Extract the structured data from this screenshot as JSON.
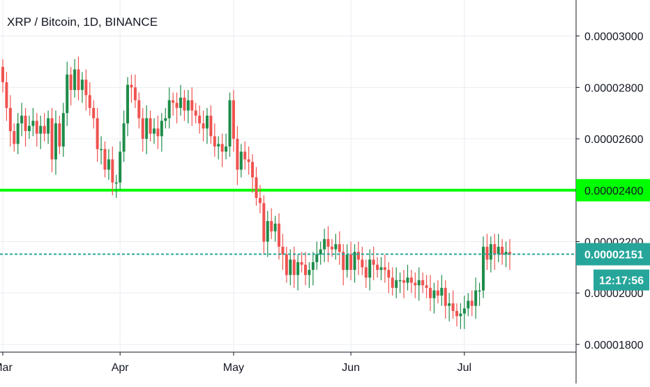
{
  "chart_data": {
    "type": "candlestick",
    "title": "XRP / Bitcoin, 1D, BINANCE",
    "x_axis": {
      "labels": [
        {
          "label": "Mar",
          "day": 0
        },
        {
          "label": "Apr",
          "day": 31
        },
        {
          "label": "May",
          "day": 61
        },
        {
          "label": "Jun",
          "day": 92
        },
        {
          "label": "Jul",
          "day": 122
        }
      ]
    },
    "y_axis": {
      "range": [
        1.77e-05,
        3.14e-05
      ],
      "ticks": [
        {
          "value": 3e-05,
          "label": "0.00003000"
        },
        {
          "value": 2.8e-05,
          "label": "0.00002800"
        },
        {
          "value": 2.6e-05,
          "label": "0.00002600"
        },
        {
          "value": 2.4e-05,
          "label": "0.00002400"
        },
        {
          "value": 2.2e-05,
          "label": "0.00002200"
        },
        {
          "value": 2e-05,
          "label": "0.00002000"
        },
        {
          "value": 1.8e-05,
          "label": "0.00001800"
        }
      ]
    },
    "horizontal_line": {
      "value": 2.4e-05,
      "label": "0.00002400",
      "color": "#00ff00"
    },
    "last_price": {
      "value": 2.151e-05,
      "label": "0.00002151",
      "countdown": "12:17:56",
      "color": "#26a69a"
    },
    "up_color": "#1e8c4a",
    "down_color": "#ef5350",
    "close_series": [
      2.82e-05,
      2.72e-05,
      2.63e-05,
      2.58e-05,
      2.66e-05,
      2.69e-05,
      2.63e-05,
      2.65e-05,
      2.67e-05,
      2.62e-05,
      2.65e-05,
      2.62e-05,
      2.68e-05,
      2.52e-05,
      2.66e-05,
      2.57e-05,
      2.7e-05,
      2.85e-05,
      2.79e-05,
      2.87e-05,
      2.79e-05,
      2.83e-05,
      2.77e-05,
      2.72e-05,
      2.68e-05,
      2.56e-05,
      2.56e-05,
      2.48e-05,
      2.52e-05,
      2.43e-05,
      2.43e-05,
      2.55e-05,
      2.66e-05,
      2.81e-05,
      2.8e-05,
      2.75e-05,
      2.68e-05,
      2.6e-05,
      2.68e-05,
      2.62e-05,
      2.64e-05,
      2.61e-05,
      2.67e-05,
      2.68e-05,
      2.75e-05,
      2.74e-05,
      2.72e-05,
      2.76e-05,
      2.71e-05,
      2.75e-05,
      2.71e-05,
      2.69e-05,
      2.66e-05,
      2.64e-05,
      2.69e-05,
      2.61e-05,
      2.57e-05,
      2.58e-05,
      2.55e-05,
      2.57e-05,
      2.75e-05,
      2.6e-05,
      2.48e-05,
      2.55e-05,
      2.52e-05,
      2.51e-05,
      2.45e-05,
      2.37e-05,
      2.35e-05,
      2.2e-05,
      2.28e-05,
      2.24e-05,
      2.27e-05,
      2.18e-05,
      2.15e-05,
      2.07e-05,
      2.13e-05,
      2.07e-05,
      2.12e-05,
      2.11e-05,
      2.07e-05,
      2.09e-05,
      2.12e-05,
      2.15e-05,
      2.17e-05,
      2.21e-05,
      2.18e-05,
      2.17e-05,
      2.19e-05,
      2.16e-05,
      2.09e-05,
      2.15e-05,
      2.09e-05,
      2.16e-05,
      2.13e-05,
      2.1e-05,
      2.06e-05,
      2.13e-05,
      2.11e-05,
      2.09e-05,
      2.1e-05,
      2.09e-05,
      2.06e-05,
      2.02e-05,
      2.05e-05,
      2.05e-05,
      2.04e-05,
      2.06e-05,
      2.04e-05,
      2.03e-05,
      2.05e-05,
      2.03e-05,
      2.02e-05,
      1.98e-05,
      2.01e-05,
      1.99e-05,
      2.02e-05,
      1.95e-05,
      1.96e-05,
      1.93e-05,
      1.91e-05,
      1.92e-05,
      1.94e-05,
      1.97e-05,
      1.95e-05,
      2.01e-05,
      2.01e-05,
      2.18e-05,
      2.13e-05,
      2.19e-05,
      2.15e-05,
      2.18e-05,
      2.15e-05,
      2.16e-05,
      2.15e-05
    ]
  }
}
